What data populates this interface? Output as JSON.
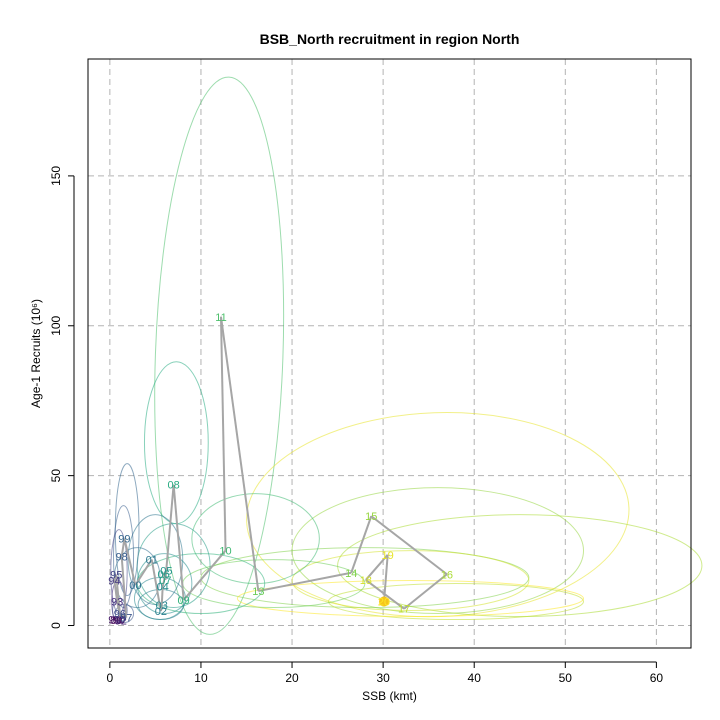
{
  "chart_data": {
    "type": "scatter",
    "title": "BSB_North recruitment in region North",
    "xlabel": "SSB (kmt)",
    "ylabel": "Age-1 Recruits (10⁶)",
    "xlim": [
      -2.4,
      63.8
    ],
    "ylim": [
      -7.5,
      189
    ],
    "x_ticks": [
      0,
      10,
      20,
      30,
      40,
      50,
      60
    ],
    "x_tick_labels": [
      "0",
      "10",
      "20",
      "30",
      "40",
      "50",
      "60"
    ],
    "y_ticks": [
      0,
      50,
      100,
      150
    ],
    "y_tick_labels": [
      "0",
      "50",
      "100",
      "150"
    ],
    "grid": true,
    "points": [
      {
        "label": "89",
        "x": 0.7,
        "y": 1.8
      },
      {
        "label": "90",
        "x": 1.0,
        "y": 2.0
      },
      {
        "label": "91",
        "x": 0.5,
        "y": 2.0
      },
      {
        "label": "92",
        "x": 1.2,
        "y": 1.7
      },
      {
        "label": "93",
        "x": 0.8,
        "y": 8.0
      },
      {
        "label": "94",
        "x": 0.5,
        "y": 15.0
      },
      {
        "label": "95",
        "x": 0.7,
        "y": 17.0
      },
      {
        "label": "96",
        "x": 1.1,
        "y": 4.0
      },
      {
        "label": "97",
        "x": 1.8,
        "y": 2.6
      },
      {
        "label": "98",
        "x": 1.3,
        "y": 23.0
      },
      {
        "label": "99",
        "x": 1.6,
        "y": 29.0
      },
      {
        "label": "00",
        "x": 2.8,
        "y": 13.5
      },
      {
        "label": "01",
        "x": 4.6,
        "y": 22.0
      },
      {
        "label": "02",
        "x": 5.6,
        "y": 4.8
      },
      {
        "label": "03",
        "x": 5.7,
        "y": 6.8
      },
      {
        "label": "04",
        "x": 5.8,
        "y": 13.0
      },
      {
        "label": "05",
        "x": 6.2,
        "y": 18.3
      },
      {
        "label": "06",
        "x": 5.9,
        "y": 17.2
      },
      {
        "label": "07",
        "x": 6.1,
        "y": 15.2
      },
      {
        "label": "08",
        "x": 7.0,
        "y": 47.0
      },
      {
        "label": "09",
        "x": 8.1,
        "y": 8.5
      },
      {
        "label": "10",
        "x": 12.7,
        "y": 25.0
      },
      {
        "label": "11",
        "x": 12.2,
        "y": 103.0
      },
      {
        "label": "13",
        "x": 16.3,
        "y": 11.5
      },
      {
        "label": "14",
        "x": 26.5,
        "y": 17.6
      },
      {
        "label": "15",
        "x": 28.7,
        "y": 36.5
      },
      {
        "label": "16",
        "x": 37.0,
        "y": 17.1
      },
      {
        "label": "17",
        "x": 32.3,
        "y": 5.6
      },
      {
        "label": "18",
        "x": 28.1,
        "y": 15.2
      },
      {
        "label": "19",
        "x": 30.5,
        "y": 23.6
      },
      {
        "label": "20",
        "x": 30.1,
        "y": 8.0
      }
    ],
    "ellipses": [
      {
        "year": "11",
        "cx": 12.0,
        "cy": 90,
        "rx": 7.0,
        "ry": 93,
        "rot": 2
      },
      {
        "year": "08",
        "cx": 7.3,
        "cy": 61,
        "rx": 3.5,
        "ry": 27,
        "rot": 0
      },
      {
        "year": "19",
        "cx": 36,
        "cy": 37,
        "rx": 21,
        "ry": 34,
        "rot": -2
      },
      {
        "year": "15",
        "cx": 36,
        "cy": 25,
        "rx": 16,
        "ry": 21,
        "rot": 0
      },
      {
        "year": "16",
        "cx": 45,
        "cy": 20,
        "rx": 20,
        "ry": 17,
        "rot": 0
      },
      {
        "year": "14",
        "cx": 28,
        "cy": 16,
        "rx": 18,
        "ry": 10,
        "rot": 0
      },
      {
        "year": "18",
        "cx": 33,
        "cy": 15,
        "rx": 13,
        "ry": 10,
        "rot": 0
      },
      {
        "year": "17",
        "cx": 38,
        "cy": 8,
        "rx": 14,
        "ry": 6,
        "rot": 0
      },
      {
        "year": "20",
        "cx": 33,
        "cy": 9,
        "rx": 19,
        "ry": 6,
        "rot": 0
      },
      {
        "year": "10",
        "cx": 16,
        "cy": 29,
        "rx": 7,
        "ry": 15,
        "rot": 0
      },
      {
        "year": "13",
        "cx": 18,
        "cy": 14,
        "rx": 10,
        "ry": 8,
        "rot": 0
      },
      {
        "year": "09",
        "cx": 10,
        "cy": 14,
        "rx": 7,
        "ry": 10,
        "rot": 0
      },
      {
        "year": "06",
        "cx": 7,
        "cy": 20,
        "rx": 4,
        "ry": 14,
        "rot": 0
      },
      {
        "year": "01",
        "cx": 5,
        "cy": 22,
        "rx": 3,
        "ry": 15,
        "rot": 0
      },
      {
        "year": "04",
        "cx": 6,
        "cy": 14,
        "rx": 3,
        "ry": 10,
        "rot": 0
      },
      {
        "year": "00",
        "cx": 3,
        "cy": 16,
        "rx": 2.5,
        "ry": 10,
        "rot": 0
      },
      {
        "year": "99",
        "cx": 1.9,
        "cy": 32,
        "rx": 1.3,
        "ry": 22,
        "rot": 0
      },
      {
        "year": "98",
        "cx": 1.5,
        "cy": 23,
        "rx": 1.1,
        "ry": 17,
        "rot": 0
      },
      {
        "year": "95",
        "cx": 1.0,
        "cy": 18,
        "rx": 0.9,
        "ry": 14,
        "rot": 0
      },
      {
        "year": "02",
        "cx": 5.6,
        "cy": 7,
        "rx": 2.5,
        "ry": 5,
        "rot": 0
      },
      {
        "year": "03",
        "cx": 5.5,
        "cy": 9,
        "rx": 2.8,
        "ry": 7,
        "rot": 0
      },
      {
        "year": "93",
        "cx": 0.9,
        "cy": 8,
        "rx": 0.7,
        "ry": 7,
        "rot": 0
      },
      {
        "year": "97",
        "cx": 1.6,
        "cy": 4,
        "rx": 1.0,
        "ry": 3,
        "rot": 0
      },
      {
        "year": "96",
        "cx": 1.1,
        "cy": 5,
        "rx": 0.8,
        "ry": 4,
        "rot": 0
      }
    ]
  }
}
